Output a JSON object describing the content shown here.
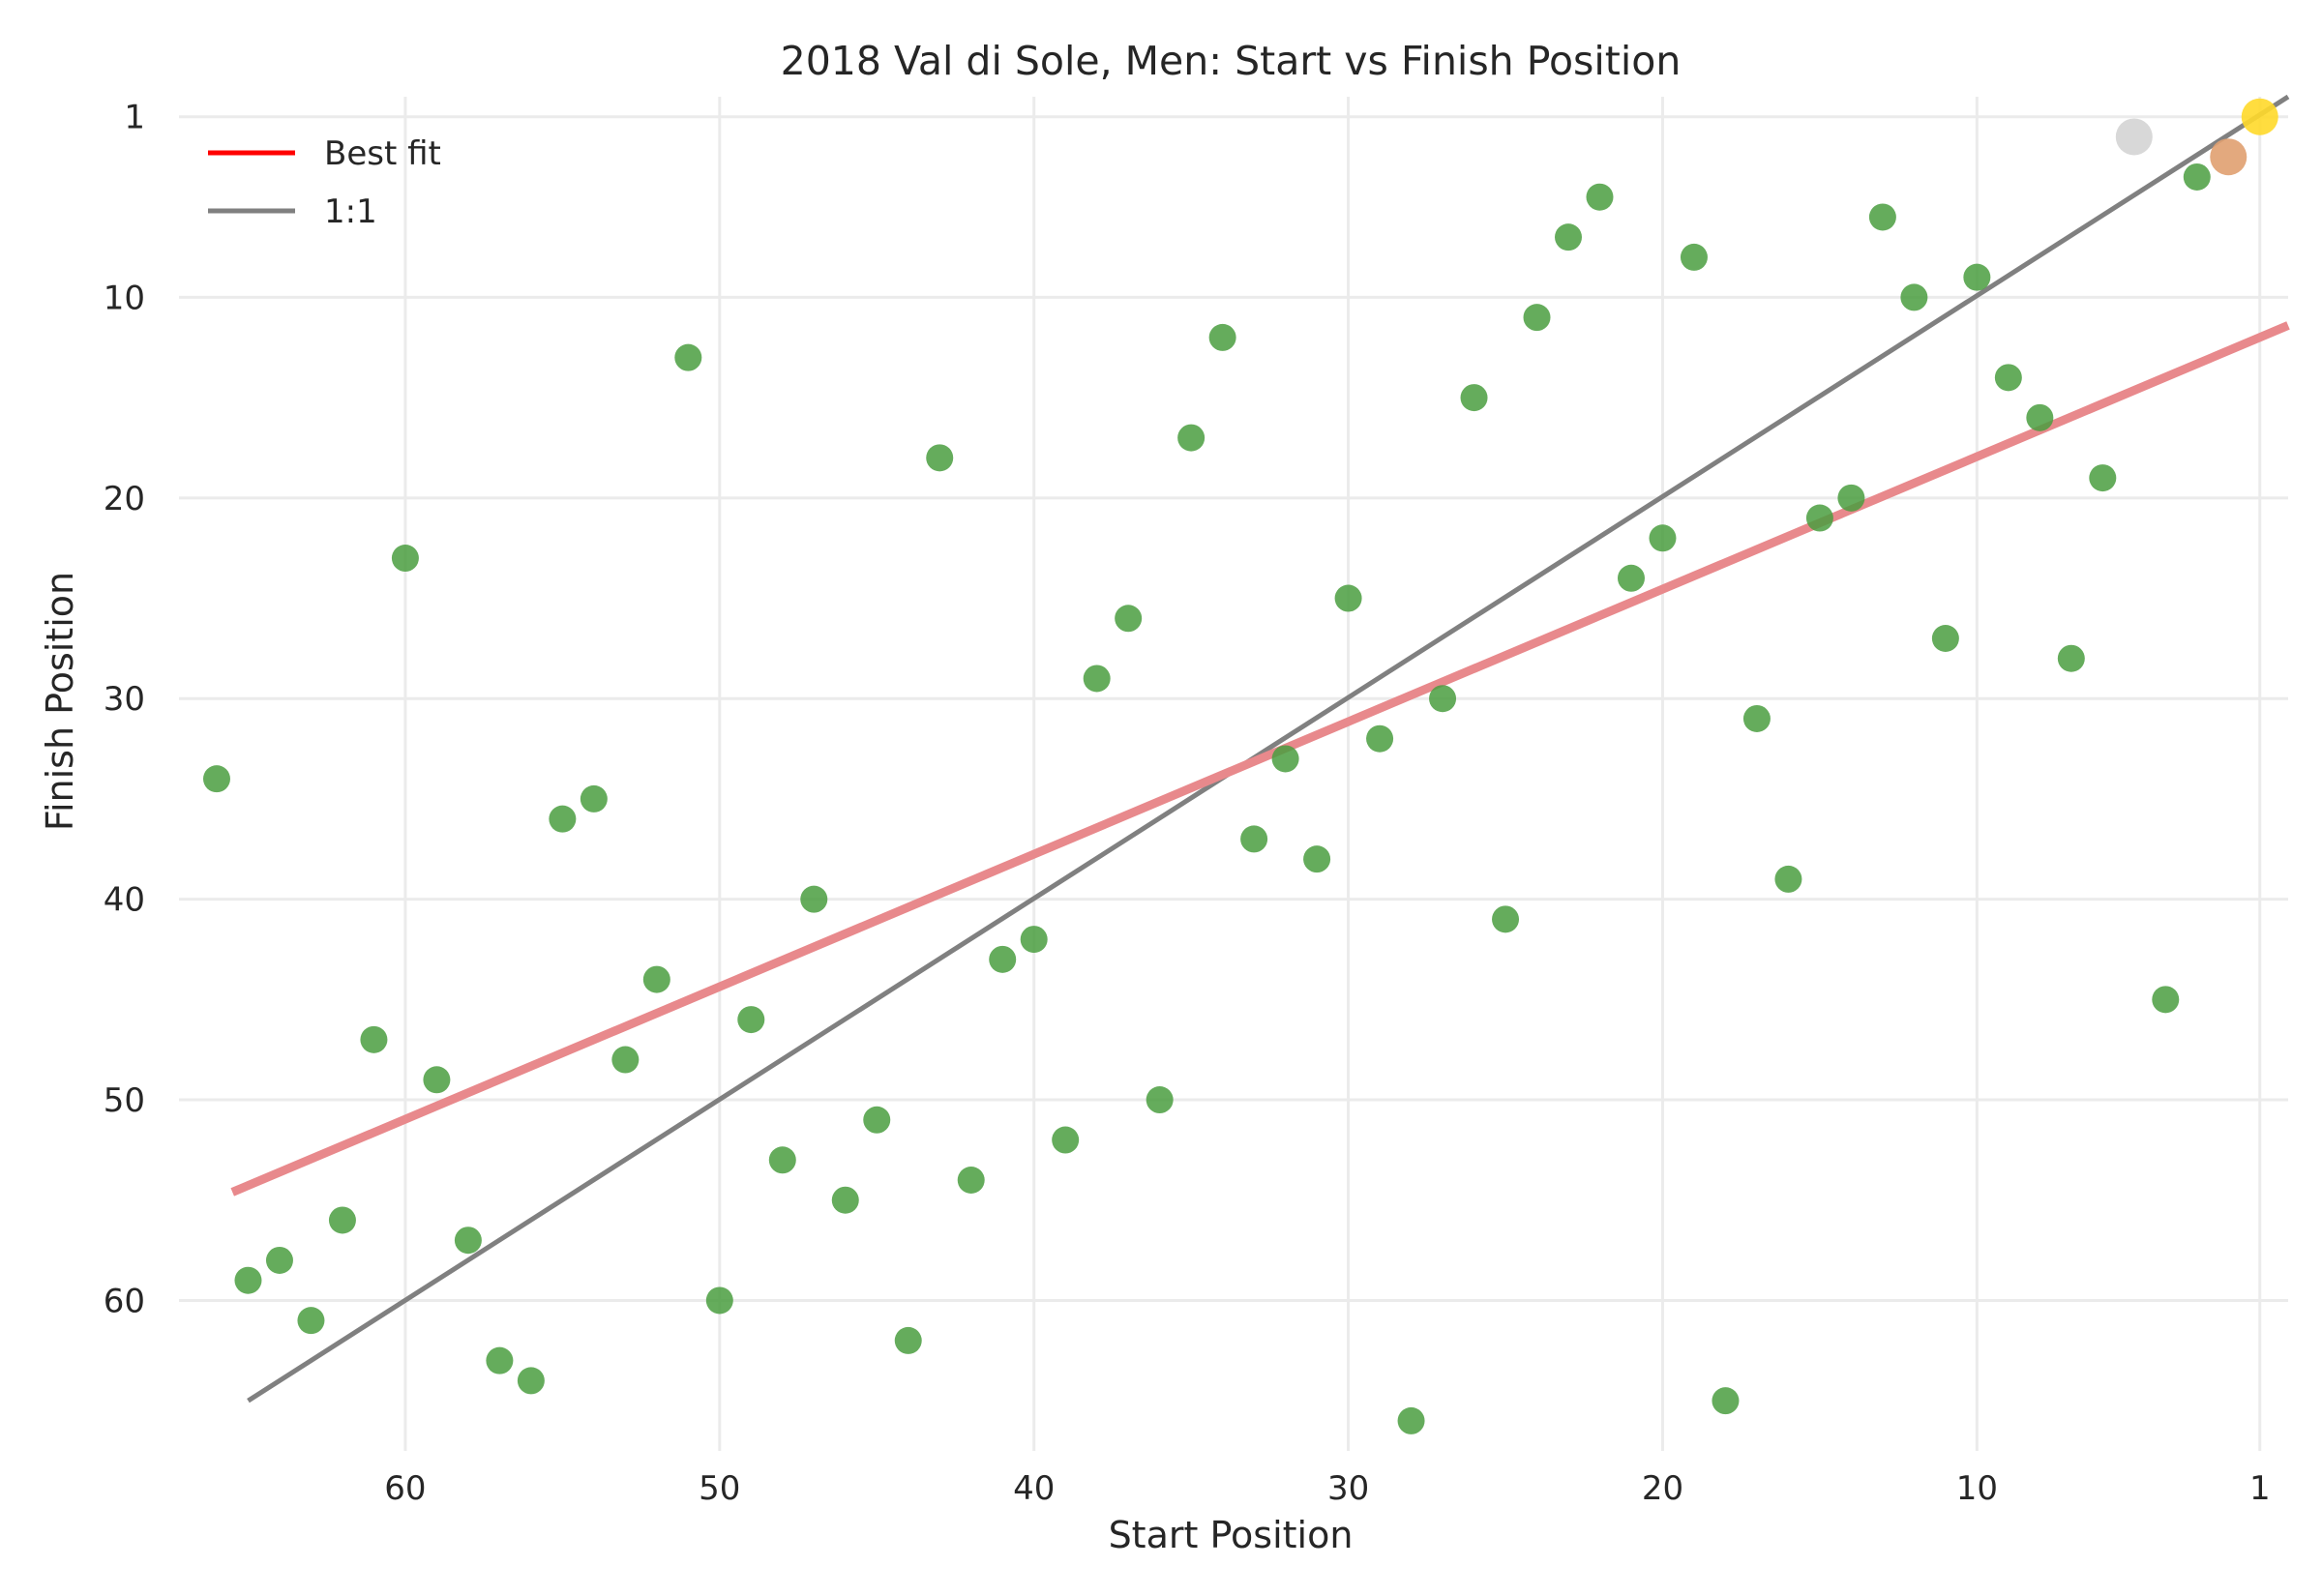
{
  "chart_data": {
    "type": "scatter",
    "title": "2018 Val di Sole, Men: Start vs Finish Position",
    "xlabel": "Start Position",
    "ylabel": "Finish Position",
    "x_reversed": true,
    "y_reversed": true,
    "xlim": [
      67.2,
      0.1
    ],
    "ylim": [
      67.5,
      0.0
    ],
    "xticks": [
      60,
      50,
      40,
      30,
      20,
      10,
      1
    ],
    "yticks": [
      1,
      10,
      20,
      30,
      40,
      50,
      60
    ],
    "grid": true,
    "legend_position": "top-left",
    "legend": [
      {
        "label": "Best fit",
        "color": "#ff0000"
      },
      {
        "label": "1:1",
        "color": "#808080"
      }
    ],
    "colors": {
      "points": "#4a9e3f",
      "gold": "#ffd92a",
      "silver": "#d4d4d4",
      "bronze": "#e0a070",
      "best_fit": "#e8898c",
      "one_to_one": "#808080"
    },
    "best_fit_line": {
      "x": [
        65.5,
        0.1
      ],
      "y": [
        54.6,
        11.4
      ]
    },
    "one_to_one_line": {
      "x": [
        65,
        0.1
      ],
      "y": [
        65,
        0
      ]
    },
    "medal_points": [
      {
        "x": 1,
        "y": 1,
        "medal": "gold"
      },
      {
        "x": 5,
        "y": 2,
        "medal": "silver"
      },
      {
        "x": 2,
        "y": 3,
        "medal": "bronze"
      }
    ],
    "points": [
      {
        "x": 66,
        "y": 34
      },
      {
        "x": 65,
        "y": 59
      },
      {
        "x": 64,
        "y": 58
      },
      {
        "x": 63,
        "y": 61
      },
      {
        "x": 62,
        "y": 56
      },
      {
        "x": 61,
        "y": 47
      },
      {
        "x": 60,
        "y": 23
      },
      {
        "x": 59,
        "y": 49
      },
      {
        "x": 58,
        "y": 57
      },
      {
        "x": 57,
        "y": 63
      },
      {
        "x": 56,
        "y": 64
      },
      {
        "x": 55,
        "y": 36
      },
      {
        "x": 54,
        "y": 35
      },
      {
        "x": 53,
        "y": 48
      },
      {
        "x": 52,
        "y": 44
      },
      {
        "x": 51,
        "y": 13
      },
      {
        "x": 50,
        "y": 60
      },
      {
        "x": 49,
        "y": 46
      },
      {
        "x": 48,
        "y": 53
      },
      {
        "x": 47,
        "y": 40
      },
      {
        "x": 46,
        "y": 55
      },
      {
        "x": 45,
        "y": 51
      },
      {
        "x": 44,
        "y": 62
      },
      {
        "x": 43,
        "y": 18
      },
      {
        "x": 42,
        "y": 54
      },
      {
        "x": 41,
        "y": 43
      },
      {
        "x": 40,
        "y": 42
      },
      {
        "x": 39,
        "y": 52
      },
      {
        "x": 38,
        "y": 29
      },
      {
        "x": 37,
        "y": 26
      },
      {
        "x": 36,
        "y": 50
      },
      {
        "x": 35,
        "y": 17
      },
      {
        "x": 34,
        "y": 12
      },
      {
        "x": 33,
        "y": 37
      },
      {
        "x": 32,
        "y": 33
      },
      {
        "x": 31,
        "y": 38
      },
      {
        "x": 30,
        "y": 25
      },
      {
        "x": 29,
        "y": 32
      },
      {
        "x": 28,
        "y": 66
      },
      {
        "x": 27,
        "y": 30
      },
      {
        "x": 26,
        "y": 15
      },
      {
        "x": 25,
        "y": 41
      },
      {
        "x": 24,
        "y": 11
      },
      {
        "x": 23,
        "y": 7
      },
      {
        "x": 22,
        "y": 5
      },
      {
        "x": 21,
        "y": 24
      },
      {
        "x": 20,
        "y": 22
      },
      {
        "x": 19,
        "y": 8
      },
      {
        "x": 18,
        "y": 65
      },
      {
        "x": 17,
        "y": 31
      },
      {
        "x": 16,
        "y": 39
      },
      {
        "x": 15,
        "y": 21
      },
      {
        "x": 14,
        "y": 20
      },
      {
        "x": 13,
        "y": 6
      },
      {
        "x": 12,
        "y": 10
      },
      {
        "x": 11,
        "y": 27
      },
      {
        "x": 10,
        "y": 9
      },
      {
        "x": 9,
        "y": 14
      },
      {
        "x": 8,
        "y": 16
      },
      {
        "x": 7,
        "y": 28
      },
      {
        "x": 6,
        "y": 19
      },
      {
        "x": 4,
        "y": 45
      },
      {
        "x": 3,
        "y": 4
      }
    ]
  }
}
